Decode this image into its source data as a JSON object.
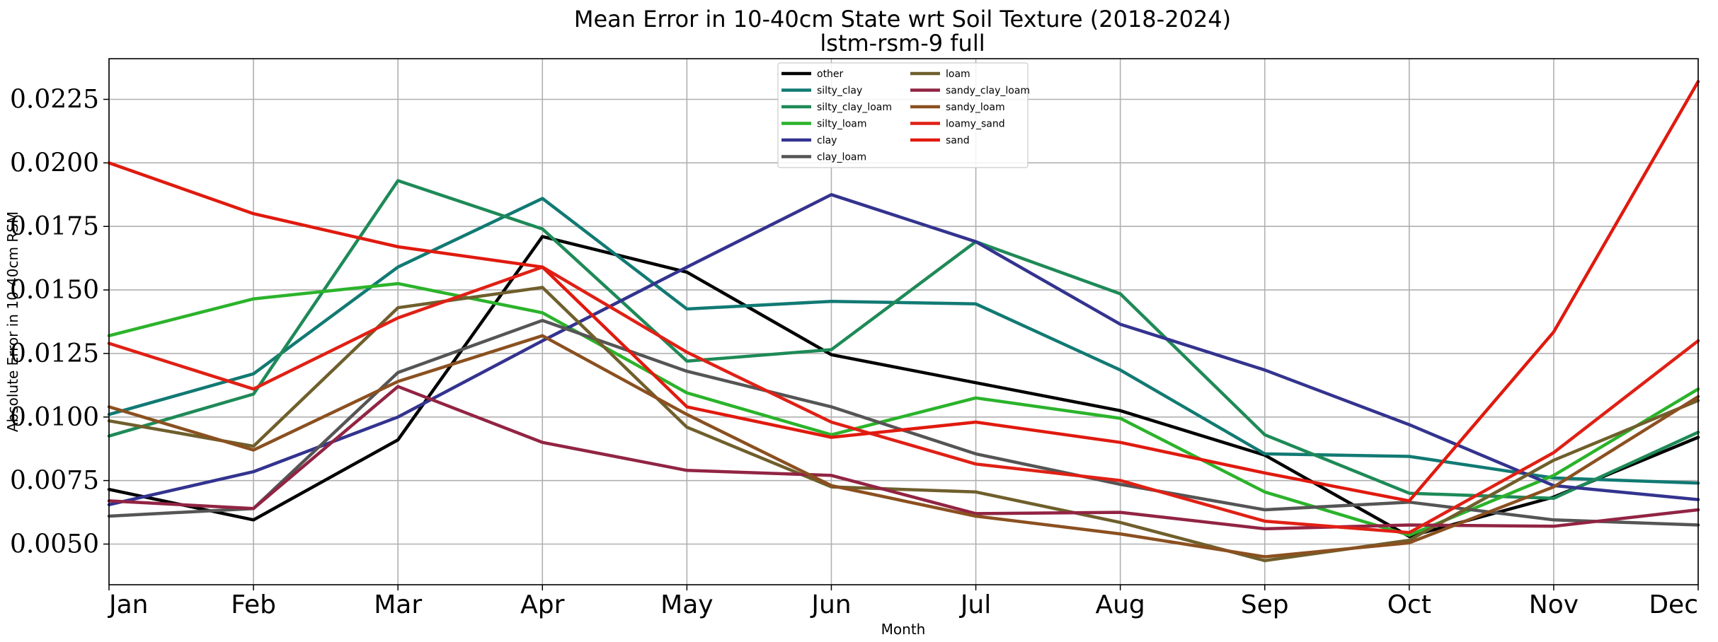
{
  "chart_data": {
    "type": "line",
    "title": "Mean Error in 10-40cm State wrt Soil Texture (2018-2024)",
    "subtitle": "lstm-rsm-9 full",
    "xlabel": "Month",
    "ylabel": "Absolute Error in 10-40cm RSM",
    "categories": [
      "Jan",
      "Feb",
      "Mar",
      "Apr",
      "May",
      "Jun",
      "Jul",
      "Aug",
      "Sep",
      "Oct",
      "Nov",
      "Dec"
    ],
    "ylim": [
      0.0034,
      0.0241
    ],
    "yticks": [
      "0.0050",
      "0.0075",
      "0.0100",
      "0.0125",
      "0.0150",
      "0.0175",
      "0.0200",
      "0.0225"
    ],
    "grid": true,
    "legend_position": "top-center",
    "series": [
      {
        "name": "other",
        "color": "#000000",
        "values": [
          0.00715,
          0.00595,
          0.0091,
          0.0171,
          0.0157,
          0.01245,
          0.01135,
          0.01025,
          0.0085,
          0.0053,
          0.00685,
          0.0092
        ]
      },
      {
        "name": "silty_clay",
        "color": "#117a73",
        "values": [
          0.0101,
          0.0117,
          0.0159,
          0.0186,
          0.01425,
          0.01455,
          0.01445,
          0.01185,
          0.00855,
          0.00845,
          0.0076,
          0.0074
        ]
      },
      {
        "name": "silty_clay_loam",
        "color": "#1e8a57",
        "values": [
          0.00925,
          0.0109,
          0.0193,
          0.0174,
          0.0122,
          0.01265,
          0.0169,
          0.01485,
          0.0093,
          0.007,
          0.0068,
          0.0094
        ]
      },
      {
        "name": "silty_loam",
        "color": "#2bb32b",
        "values": [
          0.0132,
          0.01465,
          0.01525,
          0.0141,
          0.01095,
          0.0093,
          0.01075,
          0.00995,
          0.00705,
          0.00535,
          0.0077,
          0.0111
        ]
      },
      {
        "name": "clay",
        "color": "#33338f",
        "values": [
          0.00655,
          0.00785,
          0.01,
          0.013,
          0.0159,
          0.01875,
          0.0169,
          0.01365,
          0.01185,
          0.0097,
          0.0073,
          0.00675
        ]
      },
      {
        "name": "clay_loam",
        "color": "#555555",
        "values": [
          0.0061,
          0.0064,
          0.01175,
          0.0138,
          0.0118,
          0.0104,
          0.00855,
          0.00735,
          0.00635,
          0.00665,
          0.00595,
          0.00575
        ]
      },
      {
        "name": "loam",
        "color": "#6f5f2c",
        "values": [
          0.00985,
          0.00885,
          0.0143,
          0.0151,
          0.0096,
          0.00725,
          0.00705,
          0.00585,
          0.00435,
          0.00515,
          0.0083,
          0.01065
        ]
      },
      {
        "name": "sandy_clay_loam",
        "color": "#922443",
        "values": [
          0.0067,
          0.0064,
          0.0112,
          0.009,
          0.0079,
          0.0077,
          0.0062,
          0.00625,
          0.0056,
          0.00575,
          0.0057,
          0.00635
        ]
      },
      {
        "name": "sandy_loam",
        "color": "#8b5020",
        "values": [
          0.0104,
          0.0087,
          0.0114,
          0.0132,
          0.0101,
          0.0073,
          0.0061,
          0.0054,
          0.0045,
          0.00505,
          0.00725,
          0.0108
        ]
      },
      {
        "name": "loamy_sand",
        "color": "#e02015",
        "values": [
          0.0129,
          0.0111,
          0.0139,
          0.0159,
          0.01255,
          0.0098,
          0.00815,
          0.0075,
          0.0059,
          0.00545,
          0.0086,
          0.013
        ]
      },
      {
        "name": "sand",
        "color": "#e01a0e",
        "values": [
          0.02,
          0.018,
          0.0167,
          0.0159,
          0.0104,
          0.0092,
          0.0098,
          0.009,
          0.0078,
          0.0067,
          0.01335,
          0.0232
        ]
      }
    ]
  }
}
